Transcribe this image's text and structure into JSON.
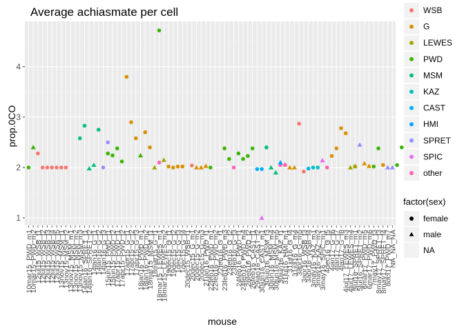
{
  "chart_data": {
    "type": "scatter",
    "title": "Average achiasmate per cell",
    "xlabel": "mouse",
    "ylabel": "prop.0CO",
    "ylim": [
      0.85,
      4.9
    ],
    "yticks": [
      1,
      2,
      3,
      4
    ],
    "grid": true,
    "legend_position": "right",
    "colors": {
      "panel_bg": "#ebebeb",
      "grid_major": "#ffffff",
      "grid_minor": "#f2f2f2",
      "strain": {
        "WSB": "#f8766d",
        "G": "#d89000",
        "LEWES": "#a3a500",
        "PWD": "#39b600",
        "MSM": "#00bf7d",
        "KAZ": "#00bfc4",
        "CAST": "#00b0f6",
        "HMI": "#00a5ff",
        "SPRET": "#9590ff",
        "SPIC": "#e76bf3",
        "other": "#ff62bc"
      }
    },
    "legend_strain": {
      "title": "",
      "items": [
        "WSB",
        "G",
        "LEWES",
        "PWD",
        "MSM",
        "KAZ",
        "CAST",
        "HMI",
        "SPRET",
        "SPIC",
        "other"
      ]
    },
    "legend_sex": {
      "title": "factor(sex)",
      "items": [
        {
          "label": "female",
          "shape": "circle"
        },
        {
          "label": "male",
          "shape": "triangle"
        },
        {
          "label": "NA",
          "shape": "none"
        }
      ]
    },
    "categories": [
      "10mar15_PWD_m1",
      "10mar15_PWD_m2",
      "12jul15_WSB_f1",
      "12jul15_WSB_f2",
      "12jul15_WSB_f3",
      "12jul15_WSB_f4",
      "12jul15_WSB_f5",
      "13nov15_MSM_f1",
      "13nov15_MSM_f2",
      "13nov15_MSM_m1",
      "13nov15_MSM_m2",
      "13nov15_MSM_m3",
      "14jan16_SPRET_f1",
      "14jan16_SPRET_f2",
      "14jan16_G_f1",
      "14jan16_G_f2",
      "14jan16_G_f3",
      "15jun15_PWD_f1",
      "15jun15_PWD_f2",
      "17apr15_PWD_f1",
      "17apr15_PWD_f2",
      "17apr15_G_f1",
      "17apr15_G_f2",
      "17apr15_G_f3",
      "18jan16_PWD_m1",
      "18jan16_PWD_m2",
      "18mar15_MSM_f1",
      "18mar15_G_f1",
      "18mar15_LEWES_m1",
      "18mar15_LEWES_m2",
      "19dec15_G_f1",
      "19dec15_G_f2",
      "1dec15_G_f3",
      "1dec15_G_f4",
      "20dec15_WSB_f1",
      "20dec15_G_m1",
      "20dec15_G_m2",
      "20dec15_G_m3",
      "21jan16_PWD_f1",
      "22feb16_PWD_m1",
      "22feb16_PWD_m2",
      "22feb16_G_f1",
      "23feb16_PWD_m3",
      "23feb16_G_f2",
      "23feb16_G_f3",
      "24feb16_PWD_f1",
      "24feb16_PWD_m4",
      "26feb16_PWD_f2",
      "26feb16_CAST_f1",
      "29jan16_CAST_f2",
      "30jun16_CAST_m1",
      "30jun16_MSM_f3",
      "30jun16_MSM_m4",
      "30jun16_MSM_m5",
      "30jun16_KAZ_f1",
      "31jul16_HMI_m1",
      "31jul16_G_f4",
      "31jul16_G_m4",
      "3apr16_G_m5",
      "3apr16_WSB_f3",
      "3apr16_WSB_f4",
      "3may16_KAZ_m1",
      "3may16_KAZ_m2",
      "3may16_SPIC_m1",
      "4dec16_G_f5",
      "4jan17_G_f6",
      "4jan17_G_f7",
      "4jan17_G_f8",
      "4jul17_LEWES_m3",
      "4jul17_LEWES_m4",
      "5jul16_SPRET_m1",
      "5jul16_SPRET_m2",
      "6mar17_PWD_m5",
      "6mar17_PWD_m6",
      "7may17_PWD_f3",
      "8may17_SPRET_f3",
      "8may17_SPRET_f4",
      "8oct17_PWD_m7",
      "NA_NA_NA"
    ],
    "series": [
      {
        "strain": "PWD",
        "points": [
          {
            "x": 1,
            "y": 2.0,
            "sex": "female"
          },
          {
            "x": 2,
            "y": 2.4,
            "sex": "male"
          },
          {
            "x": 18,
            "y": 2.28,
            "sex": "female"
          },
          {
            "x": 19,
            "y": 2.24,
            "sex": "female"
          },
          {
            "x": 20,
            "y": 2.38,
            "sex": "female"
          },
          {
            "x": 21,
            "y": 2.12,
            "sex": "female"
          },
          {
            "x": 25,
            "y": 2.24,
            "sex": "male"
          },
          {
            "x": 29,
            "y": 4.72,
            "sex": "female"
          },
          {
            "x": 40,
            "y": 2.0,
            "sex": "female"
          },
          {
            "x": 43,
            "y": 2.38,
            "sex": "female"
          },
          {
            "x": 44,
            "y": 2.17,
            "sex": "female"
          },
          {
            "x": 46,
            "y": 2.28,
            "sex": "female"
          },
          {
            "x": 47,
            "y": 2.17,
            "sex": "female"
          },
          {
            "x": 48,
            "y": 2.23,
            "sex": "female"
          },
          {
            "x": 49,
            "y": 2.38,
            "sex": "female"
          },
          {
            "x": 75,
            "y": 2.02,
            "sex": "female"
          },
          {
            "x": 76,
            "y": 2.38,
            "sex": "female"
          },
          {
            "x": 80,
            "y": 2.05,
            "sex": "female"
          },
          {
            "x": 81,
            "y": 2.4,
            "sex": "female"
          }
        ]
      },
      {
        "strain": "WSB",
        "points": [
          {
            "x": 3,
            "y": 2.28,
            "sex": "female"
          },
          {
            "x": 4,
            "y": 2.0,
            "sex": "female"
          },
          {
            "x": 5,
            "y": 2.0,
            "sex": "female"
          },
          {
            "x": 6,
            "y": 2.0,
            "sex": "female"
          },
          {
            "x": 7,
            "y": 2.0,
            "sex": "female"
          },
          {
            "x": 8,
            "y": 2.0,
            "sex": "female"
          },
          {
            "x": 9,
            "y": 2.0,
            "sex": "female"
          },
          {
            "x": 36,
            "y": 2.04,
            "sex": "female"
          },
          {
            "x": 59,
            "y": 2.87,
            "sex": "female"
          },
          {
            "x": 60,
            "y": 1.92,
            "sex": "female"
          }
        ]
      },
      {
        "strain": "MSM",
        "points": [
          {
            "x": 12,
            "y": 2.58,
            "sex": "female"
          },
          {
            "x": 13,
            "y": 2.83,
            "sex": "female"
          },
          {
            "x": 14,
            "y": 1.98,
            "sex": "male"
          },
          {
            "x": 15,
            "y": 2.05,
            "sex": "male"
          },
          {
            "x": 16,
            "y": 2.75,
            "sex": "female"
          },
          {
            "x": 52,
            "y": 2.4,
            "sex": "female"
          },
          {
            "x": 53,
            "y": 2.0,
            "sex": "male"
          },
          {
            "x": 54,
            "y": 1.9,
            "sex": "male"
          }
        ]
      },
      {
        "strain": "SPRET",
        "points": [
          {
            "x": 17,
            "y": 2.0,
            "sex": "female"
          },
          {
            "x": 18,
            "y": 2.5,
            "sex": "female"
          },
          {
            "x": 72,
            "y": 2.45,
            "sex": "male"
          },
          {
            "x": 78,
            "y": 2.0,
            "sex": "male"
          },
          {
            "x": 79,
            "y": 2.0,
            "sex": "male"
          }
        ]
      },
      {
        "strain": "G",
        "points": [
          {
            "x": 22,
            "y": 3.8,
            "sex": "female"
          },
          {
            "x": 23,
            "y": 2.9,
            "sex": "female"
          },
          {
            "x": 24,
            "y": 2.58,
            "sex": "female"
          },
          {
            "x": 26,
            "y": 2.7,
            "sex": "female"
          },
          {
            "x": 27,
            "y": 2.4,
            "sex": "female"
          },
          {
            "x": 31,
            "y": 2.02,
            "sex": "female"
          },
          {
            "x": 32,
            "y": 2.0,
            "sex": "female"
          },
          {
            "x": 33,
            "y": 2.02,
            "sex": "female"
          },
          {
            "x": 34,
            "y": 2.02,
            "sex": "female"
          },
          {
            "x": 37,
            "y": 2.0,
            "sex": "male"
          },
          {
            "x": 38,
            "y": 2.0,
            "sex": "male"
          },
          {
            "x": 39,
            "y": 2.03,
            "sex": "male"
          },
          {
            "x": 56,
            "y": 2.06,
            "sex": "male"
          },
          {
            "x": 57,
            "y": 2.0,
            "sex": "male"
          },
          {
            "x": 58,
            "y": 2.0,
            "sex": "male"
          },
          {
            "x": 66,
            "y": 2.23,
            "sex": "female"
          },
          {
            "x": 67,
            "y": 2.38,
            "sex": "female"
          },
          {
            "x": 68,
            "y": 2.78,
            "sex": "female"
          },
          {
            "x": 69,
            "y": 2.68,
            "sex": "female"
          },
          {
            "x": 71,
            "y": 2.02,
            "sex": "female"
          },
          {
            "x": 73,
            "y": 2.08,
            "sex": "male"
          },
          {
            "x": 74,
            "y": 2.03,
            "sex": "male"
          },
          {
            "x": 77,
            "y": 2.05,
            "sex": "female"
          }
        ]
      },
      {
        "strain": "LEWES",
        "points": [
          {
            "x": 28,
            "y": 2.0,
            "sex": "male"
          },
          {
            "x": 30,
            "y": 2.15,
            "sex": "male"
          },
          {
            "x": 70,
            "y": 2.0,
            "sex": "male"
          },
          {
            "x": 71,
            "y": 2.03,
            "sex": "male"
          }
        ]
      },
      {
        "strain": "other",
        "points": [
          {
            "x": 29,
            "y": 2.1,
            "sex": "female"
          },
          {
            "x": 45,
            "y": 2.0,
            "sex": "female"
          },
          {
            "x": 55,
            "y": 2.05,
            "sex": "female"
          },
          {
            "x": 56,
            "y": 2.05,
            "sex": "female"
          },
          {
            "x": 65,
            "y": 2.0,
            "sex": "female"
          }
        ]
      },
      {
        "strain": "CAST",
        "points": [
          {
            "x": 50,
            "y": 1.97,
            "sex": "female"
          },
          {
            "x": 51,
            "y": 1.97,
            "sex": "female"
          },
          {
            "x": 61,
            "y": 1.98,
            "sex": "female"
          }
        ]
      },
      {
        "strain": "HMI",
        "points": [
          {
            "x": 55,
            "y": 2.1,
            "sex": "male"
          }
        ]
      },
      {
        "strain": "KAZ",
        "points": [
          {
            "x": 62,
            "y": 2.0,
            "sex": "female"
          },
          {
            "x": 63,
            "y": 2.0,
            "sex": "female"
          }
        ]
      },
      {
        "strain": "SPIC",
        "points": [
          {
            "x": 64,
            "y": 2.14,
            "sex": "male"
          },
          {
            "x": 51,
            "y": 1.0,
            "sex": "male"
          }
        ]
      }
    ]
  }
}
